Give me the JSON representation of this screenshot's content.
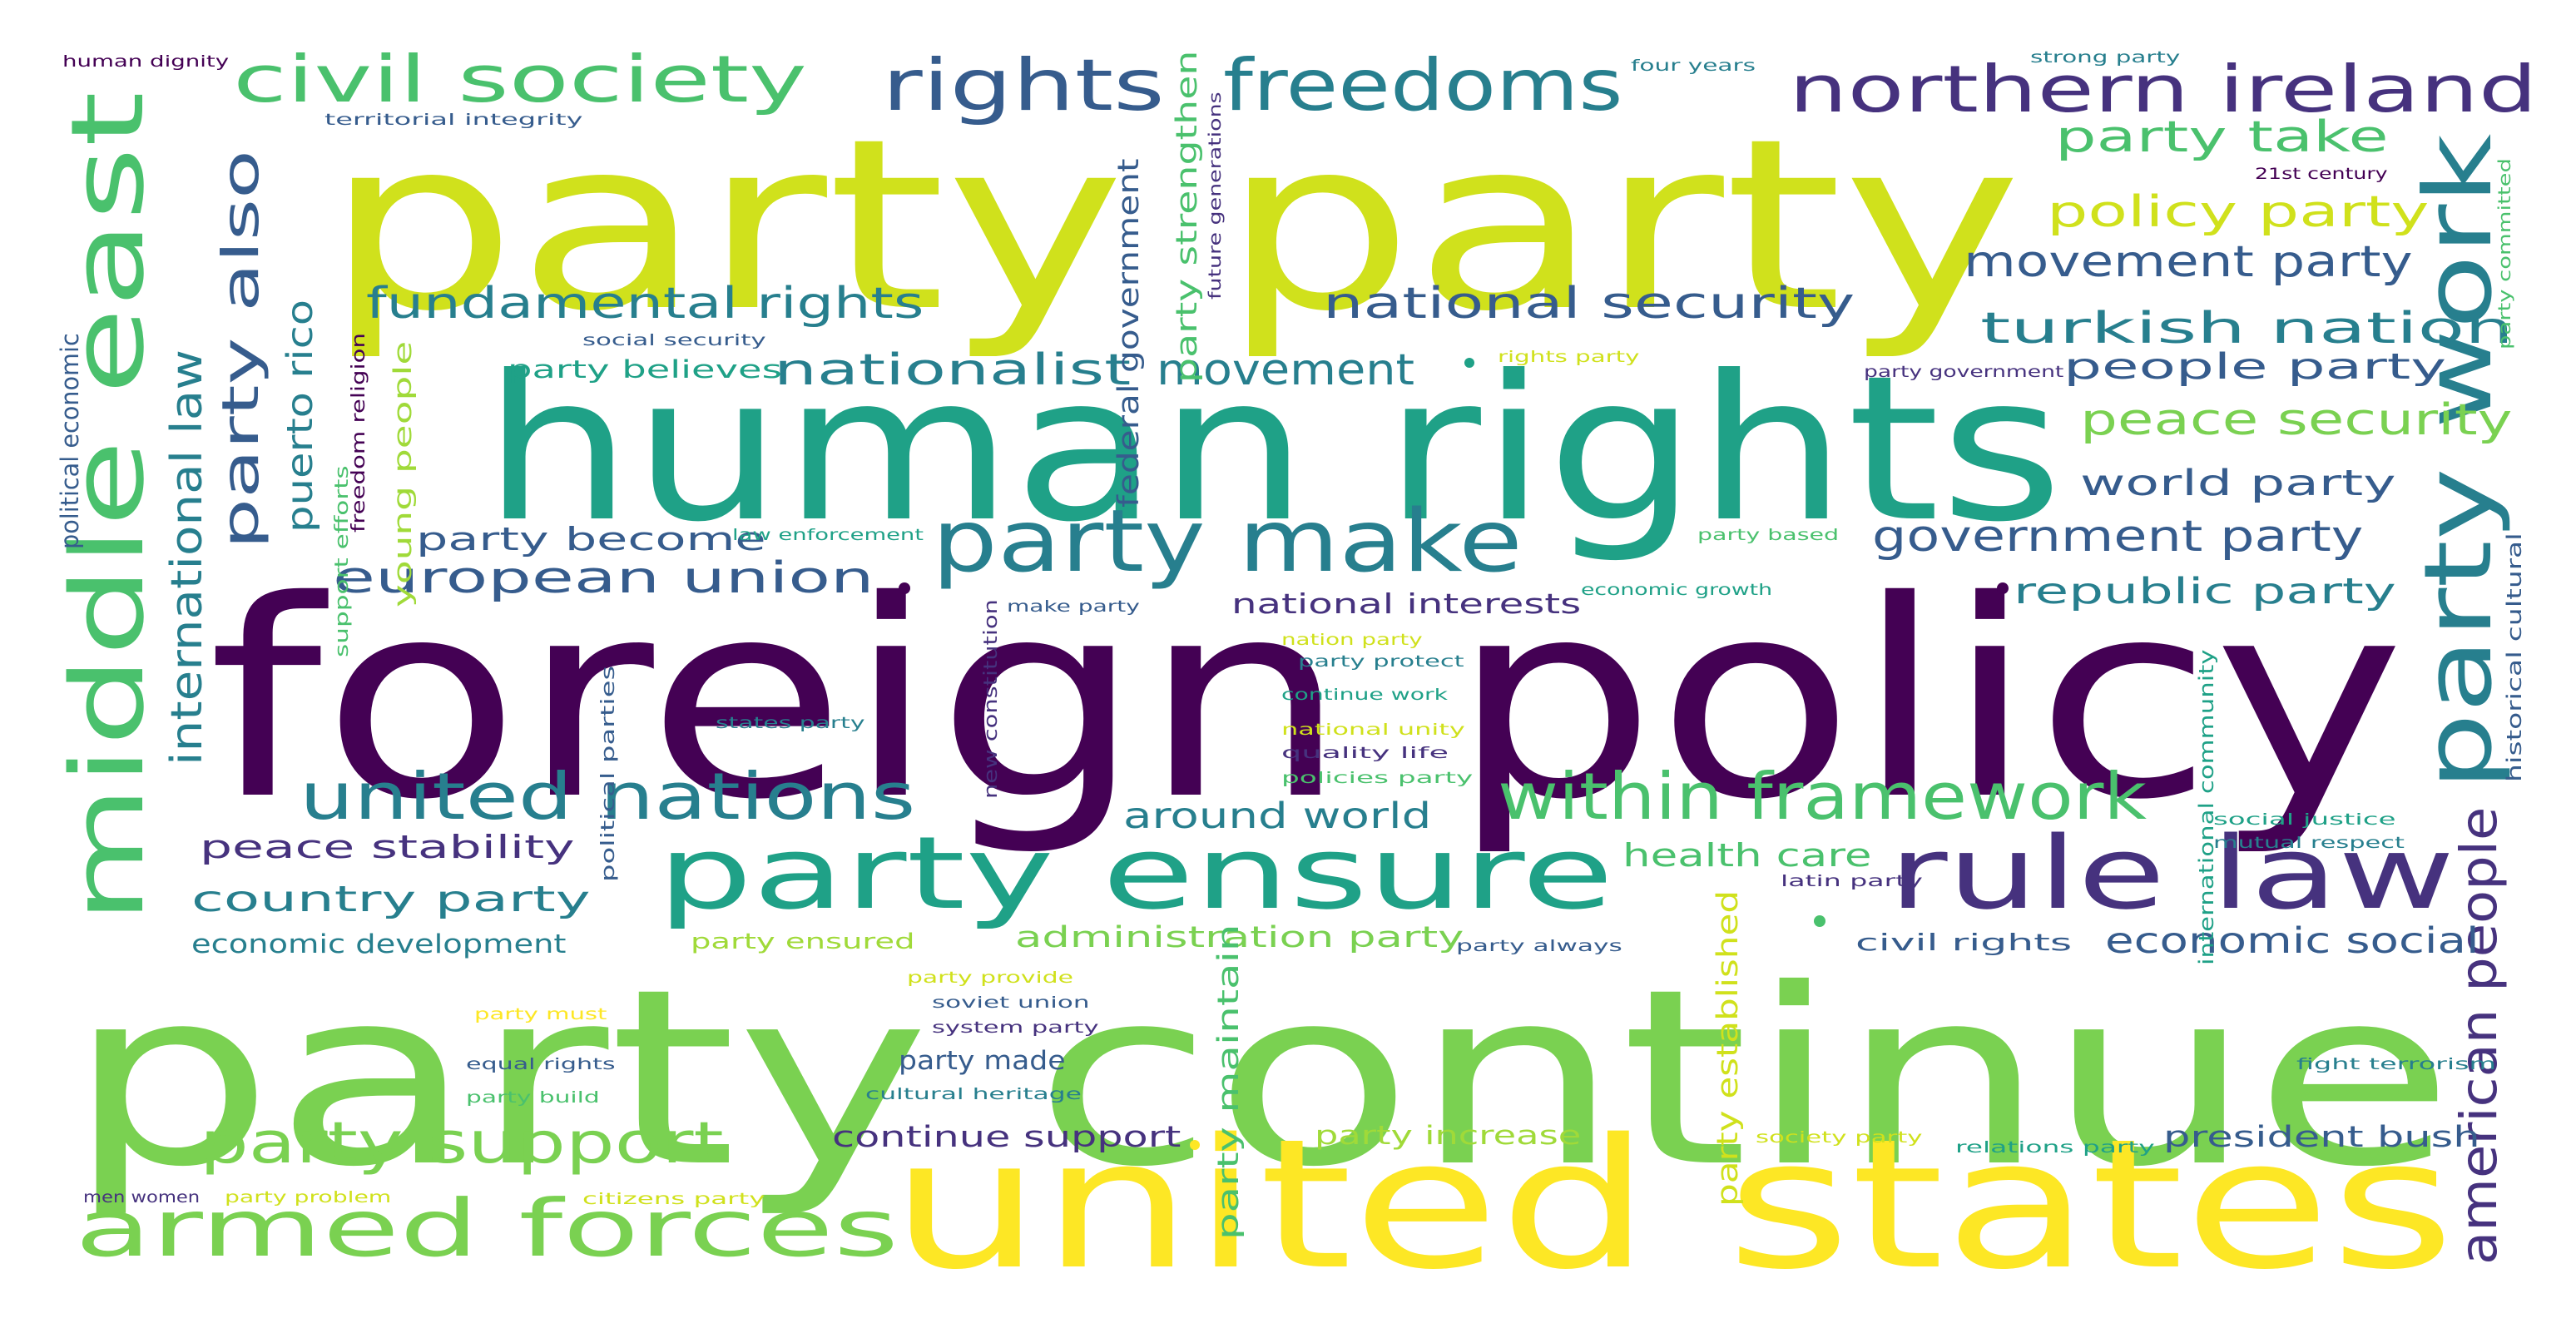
{
  "palette": {
    "p0": "#440154",
    "p1": "#46327e",
    "p2": "#365c8d",
    "p3": "#277f8e",
    "p4": "#1fa187",
    "p5": "#4ac16d",
    "p6": "#7ad151",
    "p7": "#a0da39",
    "p8": "#d0e11c",
    "p9": "#fde725"
  },
  "words": [
    {
      "text": "foreign policy",
      "c": "p0"
    },
    {
      "text": "party continue",
      "c": "p6"
    },
    {
      "text": "party party",
      "c": "p8"
    },
    {
      "text": "human rights",
      "c": "p4"
    },
    {
      "text": "united states",
      "c": "p9"
    },
    {
      "text": "party ensure",
      "c": "p4"
    },
    {
      "text": "middle east",
      "c": "p5"
    },
    {
      "text": "party work",
      "c": "p3"
    },
    {
      "text": "rule law",
      "c": "p1"
    },
    {
      "text": "armed forces",
      "c": "p6"
    },
    {
      "text": "party make",
      "c": "p3"
    },
    {
      "text": "civil society",
      "c": "p5"
    },
    {
      "text": "rights",
      "c": "p2"
    },
    {
      "text": "freedoms",
      "c": "p3"
    },
    {
      "text": "northern ireland",
      "c": "p1"
    },
    {
      "text": "united nations",
      "c": "p3"
    },
    {
      "text": "within framework",
      "c": "p5"
    },
    {
      "text": "party also",
      "c": "p2"
    },
    {
      "text": "party support",
      "c": "p6"
    },
    {
      "text": "international law",
      "c": "p3"
    },
    {
      "text": "party take",
      "c": "p5"
    },
    {
      "text": "policy party",
      "c": "p8"
    },
    {
      "text": "movement party",
      "c": "p2"
    },
    {
      "text": "turkish nation",
      "c": "p3"
    },
    {
      "text": "national security",
      "c": "p2"
    },
    {
      "text": "fundamental rights",
      "c": "p3"
    },
    {
      "text": "nationalist",
      "c": "p3"
    },
    {
      "text": "movement",
      "c": "p3"
    },
    {
      "text": "european union",
      "c": "p2"
    },
    {
      "text": "puerto rico",
      "c": "p3"
    },
    {
      "text": "people party",
      "c": "p2"
    },
    {
      "text": "peace security",
      "c": "p6"
    },
    {
      "text": "world party",
      "c": "p2"
    },
    {
      "text": "government party",
      "c": "p2"
    },
    {
      "text": "republic party",
      "c": "p3"
    },
    {
      "text": "american people",
      "c": "p1"
    },
    {
      "text": "economic social",
      "c": "p2"
    },
    {
      "text": "country party",
      "c": "p3"
    },
    {
      "text": "peace stability",
      "c": "p1"
    },
    {
      "text": "around world",
      "c": "p3"
    },
    {
      "text": "health care",
      "c": "p5"
    },
    {
      "text": "party become",
      "c": "p2"
    },
    {
      "text": "national interests",
      "c": "p1"
    },
    {
      "text": "economic development",
      "c": "p3"
    },
    {
      "text": "administration party",
      "c": "p6"
    },
    {
      "text": "continue support",
      "c": "p1"
    },
    {
      "text": "president bush",
      "c": "p2"
    },
    {
      "text": "party established",
      "c": "p8"
    },
    {
      "text": "party maintain",
      "c": "p5"
    },
    {
      "text": "party increase",
      "c": "p7"
    },
    {
      "text": "civil rights",
      "c": "p2"
    },
    {
      "text": "party made",
      "c": "p2"
    },
    {
      "text": "party ensured",
      "c": "p7"
    },
    {
      "text": "young people",
      "c": "p7"
    },
    {
      "text": "federal government",
      "c": "p2"
    },
    {
      "text": "party strengthen",
      "c": "p5"
    },
    {
      "text": "political economic",
      "c": "p2"
    },
    {
      "text": "party believes",
      "c": "p4"
    },
    {
      "text": "human dignity",
      "c": "p0"
    },
    {
      "text": "territorial integrity",
      "c": "p2"
    },
    {
      "text": "four years",
      "c": "p3"
    },
    {
      "text": "strong party",
      "c": "p3"
    },
    {
      "text": "21st century",
      "c": "p0"
    },
    {
      "text": "future generations",
      "c": "p1"
    },
    {
      "text": "party committed",
      "c": "p5"
    },
    {
      "text": "social security",
      "c": "p2"
    },
    {
      "text": "rights party",
      "c": "p8"
    },
    {
      "text": "party government",
      "c": "p1"
    },
    {
      "text": "freedom religion",
      "c": "p0"
    },
    {
      "text": "support efforts",
      "c": "p5"
    },
    {
      "text": "law enforcement",
      "c": "p4"
    },
    {
      "text": "party based",
      "c": "p5"
    },
    {
      "text": "economic growth",
      "c": "p4"
    },
    {
      "text": "historical cultural",
      "c": "p2"
    },
    {
      "text": "make party",
      "c": "p2"
    },
    {
      "text": "nation party",
      "c": "p8"
    },
    {
      "text": "party protect",
      "c": "p3"
    },
    {
      "text": "continue work",
      "c": "p4"
    },
    {
      "text": "national unity",
      "c": "p8"
    },
    {
      "text": "quality life",
      "c": "p1"
    },
    {
      "text": "policies party",
      "c": "p5"
    },
    {
      "text": "new constitution",
      "c": "p1"
    },
    {
      "text": "political parties",
      "c": "p2"
    },
    {
      "text": "states party",
      "c": "p3"
    },
    {
      "text": "international community",
      "c": "p4"
    },
    {
      "text": "social justice",
      "c": "p4"
    },
    {
      "text": "mutual respect",
      "c": "p3"
    },
    {
      "text": "latin party",
      "c": "p1"
    },
    {
      "text": "party always",
      "c": "p2"
    },
    {
      "text": "party provide",
      "c": "p8"
    },
    {
      "text": "soviet union",
      "c": "p2"
    },
    {
      "text": "system party",
      "c": "p1"
    },
    {
      "text": "party must",
      "c": "p9"
    },
    {
      "text": "equal rights",
      "c": "p2"
    },
    {
      "text": "party build",
      "c": "p5"
    },
    {
      "text": "cultural heritage",
      "c": "p3"
    },
    {
      "text": "fight terrorism",
      "c": "p3"
    },
    {
      "text": "society party",
      "c": "p8"
    },
    {
      "text": "relations party",
      "c": "p4"
    },
    {
      "text": "men women",
      "c": "p1"
    },
    {
      "text": "party problem",
      "c": "p8"
    },
    {
      "text": "citizens party",
      "c": "p8"
    }
  ]
}
